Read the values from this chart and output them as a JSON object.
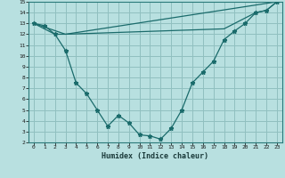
{
  "xlabel": "Humidex (Indice chaleur)",
  "bg_color": "#b8e0e0",
  "grid_color": "#90c0c0",
  "line_color": "#1a6b6b",
  "xlim": [
    -0.5,
    23.5
  ],
  "ylim": [
    2,
    15
  ],
  "xticks": [
    0,
    1,
    2,
    3,
    4,
    5,
    6,
    7,
    8,
    9,
    10,
    11,
    12,
    13,
    14,
    15,
    16,
    17,
    18,
    19,
    20,
    21,
    22,
    23
  ],
  "yticks": [
    2,
    3,
    4,
    5,
    6,
    7,
    8,
    9,
    10,
    11,
    12,
    13,
    14,
    15
  ],
  "line1_x": [
    0,
    1,
    2,
    3,
    4,
    5,
    6,
    7,
    8,
    9,
    10,
    11,
    12,
    13,
    14,
    15,
    16,
    17,
    18,
    19,
    20,
    21,
    22,
    23
  ],
  "line1_y": [
    13.0,
    12.8,
    12.0,
    10.5,
    7.5,
    6.5,
    5.0,
    3.5,
    4.5,
    3.8,
    2.7,
    2.6,
    2.3,
    3.3,
    5.0,
    7.5,
    8.5,
    9.5,
    11.5,
    12.3,
    13.0,
    14.0,
    14.2,
    15.0
  ],
  "line2_x": [
    0,
    2,
    3,
    23
  ],
  "line2_y": [
    13.0,
    12.0,
    12.0,
    15.0
  ],
  "line3_x": [
    0,
    3,
    18,
    21,
    22,
    23
  ],
  "line3_y": [
    13.0,
    12.0,
    12.5,
    14.0,
    14.2,
    15.0
  ]
}
